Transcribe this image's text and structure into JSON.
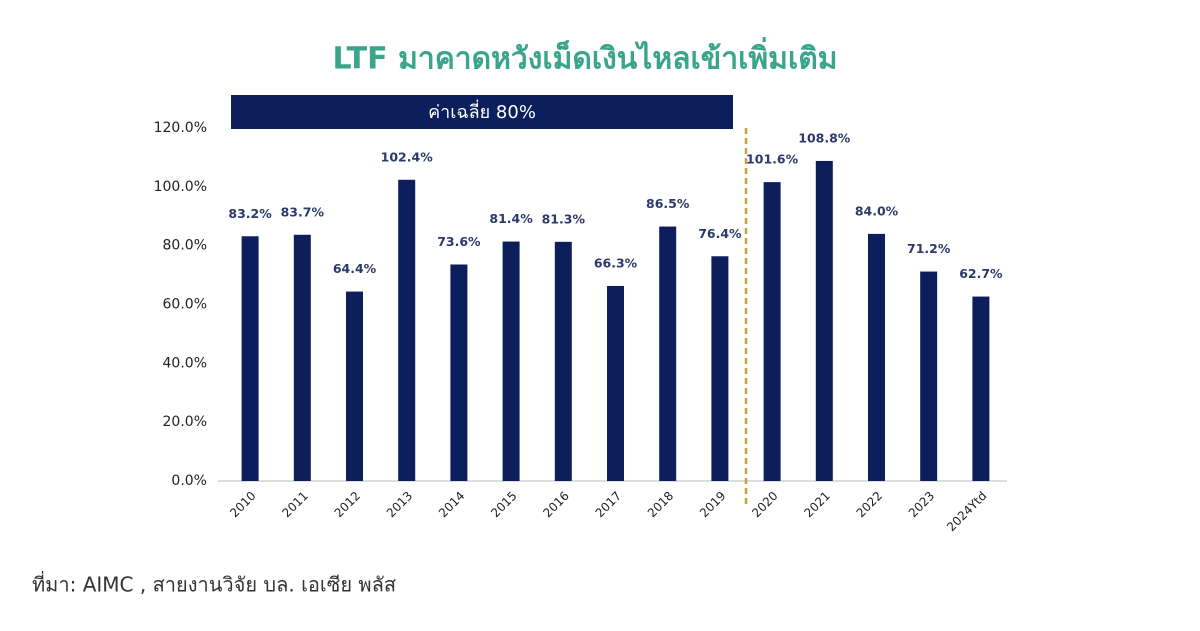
{
  "chart_data": {
    "type": "bar",
    "title": "LTF มาคาดหวังเม็ดเงินไหลเข้าเพิ่มเติม",
    "annotations": [
      "ค่าเฉลี่ย 80%"
    ],
    "source": "ที่มา: AIMC , สายงานวิจัย บล. เอเซีย พลัส",
    "categories": [
      "2010",
      "2011",
      "2012",
      "2013",
      "2014",
      "2015",
      "2016",
      "2017",
      "2018",
      "2019",
      "2020",
      "2021",
      "2022",
      "2023",
      "2024Ytd"
    ],
    "values": [
      83.2,
      83.7,
      64.4,
      102.4,
      73.6,
      81.4,
      81.3,
      66.3,
      86.5,
      76.4,
      101.6,
      108.8,
      84.0,
      71.2,
      62.7
    ],
    "value_labels": [
      "83.2%",
      "83.7%",
      "64.4%",
      "102.4%",
      "73.6%",
      "81.4%",
      "81.3%",
      "66.3%",
      "86.5%",
      "76.4%",
      "101.6%",
      "108.8%",
      "84.0%",
      "71.2%",
      "62.7%"
    ],
    "color": "#0c1f5c",
    "ylim": [
      0,
      120
    ],
    "yticks": [
      {
        "value": 0,
        "label": "0.0%"
      },
      {
        "value": 20,
        "label": "20.0%"
      },
      {
        "value": 40,
        "label": "40.0%"
      },
      {
        "value": 60,
        "label": "60.0%"
      },
      {
        "value": 80,
        "label": "80.0%"
      },
      {
        "value": 100,
        "label": "100.0%"
      },
      {
        "value": 120,
        "label": "120.0%"
      }
    ],
    "grid": false
  }
}
